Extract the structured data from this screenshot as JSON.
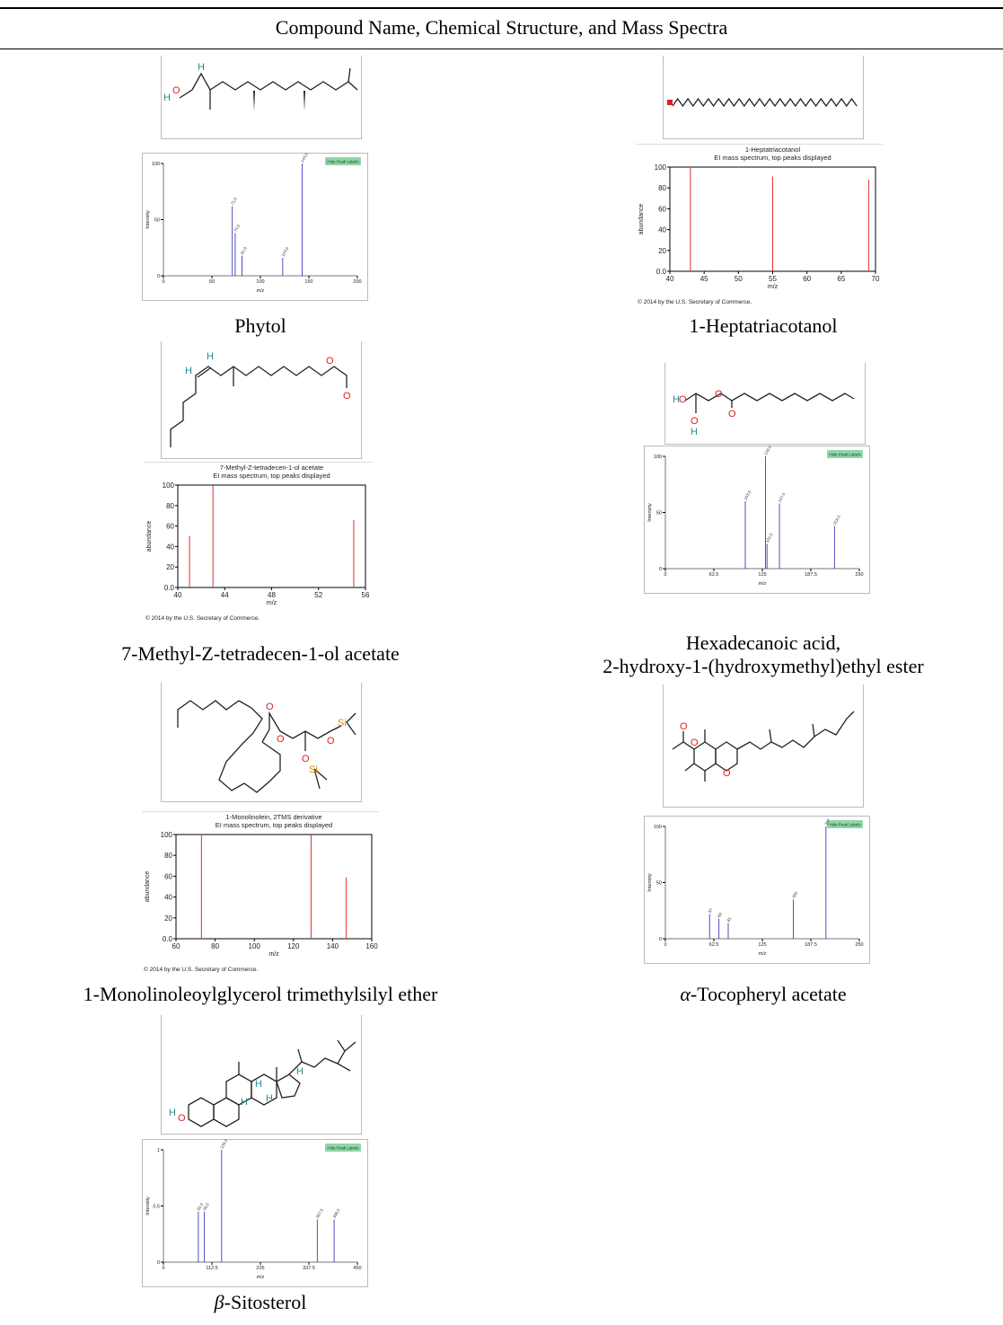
{
  "table": {
    "title": "Compound Name, Chemical Structure, and Mass Spectra"
  },
  "compounds": [
    {
      "name": "Phytol",
      "structure": {
        "atom_labels": [
          "H",
          "O",
          "H"
        ]
      },
      "spectrum": {
        "style": "pubchem",
        "button": "Hide Peak Labels",
        "xlabel": "m/z",
        "ylabel": "Intensity",
        "xticks": [
          "0",
          "50",
          "100",
          "150",
          "200"
        ],
        "yticks": [
          "0",
          "50",
          "100"
        ],
        "xlim": [
          0,
          200
        ],
        "ylim": [
          0,
          100
        ],
        "peaks": [
          {
            "x": 71,
            "y": 62,
            "label": "71.0"
          },
          {
            "x": 74,
            "y": 38,
            "label": "74.0"
          },
          {
            "x": 81,
            "y": 18,
            "label": "81.0"
          },
          {
            "x": 123,
            "y": 16,
            "label": "123.0"
          },
          {
            "x": 143,
            "y": 100,
            "label": "143.0"
          }
        ]
      }
    },
    {
      "name": "1-Heptatriacotanol",
      "structure": {
        "atom_labels": []
      },
      "spectrum": {
        "style": "nist",
        "title_lines": [
          "1-Heptatriacotanol",
          "EI mass spectrum, top peaks displayed"
        ],
        "xlabel": "m/z",
        "ylabel": "abundance",
        "xticks": [
          "40",
          "45",
          "50",
          "55",
          "60",
          "65",
          "70"
        ],
        "yticks": [
          "0.0",
          "20",
          "40",
          "60",
          "80",
          "100"
        ],
        "xlim": [
          40,
          70
        ],
        "ylim": [
          0,
          100
        ],
        "peaks": [
          {
            "x": 43,
            "y": 100
          },
          {
            "x": 55,
            "y": 91
          },
          {
            "x": 69,
            "y": 88
          }
        ],
        "copyright": "© 2014 by the U.S. Secretary of Commerce."
      }
    },
    {
      "name": "7-Methyl-Z-tetradecen-1-ol acetate",
      "structure": {
        "atom_labels": [
          "H",
          "H",
          "O",
          "O"
        ]
      },
      "spectrum": {
        "style": "nist",
        "title_lines": [
          "7-Methyl-Z-tetradecen-1-ol acetate",
          "EI mass spectrum, top peaks displayed"
        ],
        "xlabel": "m/z",
        "ylabel": "abundance",
        "xticks": [
          "40",
          "44",
          "48",
          "52",
          "56"
        ],
        "yticks": [
          "0.0",
          "20",
          "40",
          "60",
          "80",
          "100"
        ],
        "xlim": [
          40,
          56
        ],
        "ylim": [
          0,
          100
        ],
        "peaks": [
          {
            "x": 41,
            "y": 50
          },
          {
            "x": 43,
            "y": 100
          },
          {
            "x": 55,
            "y": 66
          }
        ],
        "copyright": "© 2014 by the U.S. Secretary of Commerce."
      }
    },
    {
      "name_lines": [
        "Hexadecanoic acid,",
        "2-hydroxy-1-(hydroxymethyl)ethyl ester"
      ],
      "structure": {
        "atom_labels": [
          "H",
          "O",
          "O",
          "O",
          "O",
          "H"
        ]
      },
      "spectrum": {
        "style": "pubchem",
        "button": "Hide Peak Labels",
        "xlabel": "m/z",
        "ylabel": "Intensity",
        "xticks": [
          "0",
          "62.5",
          "125",
          "187.5",
          "250"
        ],
        "yticks": [
          "0",
          "50",
          "100"
        ],
        "xlim": [
          0,
          250
        ],
        "ylim": [
          0,
          100
        ],
        "peaks": [
          {
            "x": 103,
            "y": 60,
            "label": "103.0"
          },
          {
            "x": 129,
            "y": 100,
            "label": "129.0"
          },
          {
            "x": 131,
            "y": 22,
            "label": "131.0"
          },
          {
            "x": 147,
            "y": 58,
            "label": "147.0"
          },
          {
            "x": 218,
            "y": 38,
            "label": "218.0"
          }
        ]
      }
    },
    {
      "name": "1-Monolinoleoylglycerol trimethylsilyl ether",
      "structure": {
        "atom_labels": [
          "O",
          "O",
          "O",
          "Si",
          "O",
          "Si"
        ]
      },
      "spectrum": {
        "style": "nist",
        "title_lines": [
          "1-Monolinolein, 2TMS derivative",
          "EI mass spectrum, top peaks displayed"
        ],
        "xlabel": "m/z",
        "ylabel": "abundance",
        "xticks": [
          "60",
          "80",
          "100",
          "120",
          "140",
          "160"
        ],
        "yticks": [
          "0.0",
          "20",
          "40",
          "60",
          "80",
          "100"
        ],
        "xlim": [
          60,
          160
        ],
        "ylim": [
          0,
          100
        ],
        "peaks": [
          {
            "x": 73,
            "y": 100
          },
          {
            "x": 129,
            "y": 100
          },
          {
            "x": 147,
            "y": 59
          }
        ],
        "copyright": "© 2014 by the U.S. Secretary of Commerce."
      }
    },
    {
      "name_prefix": "α",
      "name": "-Tocopheryl acetate",
      "structure": {
        "atom_labels": [
          "O",
          "O",
          "O"
        ]
      },
      "spectrum": {
        "style": "pubchem",
        "button": "Hide Peak Labels",
        "xlabel": "m/z",
        "ylabel": "Intensity",
        "xticks": [
          "0",
          "62.5",
          "125",
          "187.5",
          "250"
        ],
        "yticks": [
          "0",
          "50",
          "100"
        ],
        "xlim": [
          0,
          250
        ],
        "ylim": [
          0,
          100
        ],
        "peaks": [
          {
            "x": 57,
            "y": 22,
            "label": "57"
          },
          {
            "x": 69,
            "y": 18,
            "label": "69"
          },
          {
            "x": 81,
            "y": 14,
            "label": "81"
          },
          {
            "x": 165,
            "y": 35,
            "label": "165"
          },
          {
            "x": 207,
            "y": 100,
            "label": "207"
          }
        ]
      }
    },
    {
      "name_prefix": "β",
      "name": "-Sitosterol",
      "structure": {
        "atom_labels": [
          "H",
          "O",
          "H",
          "H",
          "H",
          "H"
        ]
      },
      "spectrum": {
        "style": "pubchem",
        "button": "Hide Peak Labels",
        "xlabel": "m/z",
        "ylabel": "Intensity",
        "xticks": [
          "0",
          "112.5",
          "225",
          "337.5",
          "450"
        ],
        "yticks": [
          "0",
          "0.5",
          "1"
        ],
        "xlim": [
          0,
          450
        ],
        "ylim": [
          0,
          1
        ],
        "peaks": [
          {
            "x": 81,
            "y": 0.45,
            "label": "81.0"
          },
          {
            "x": 95,
            "y": 0.45,
            "label": "95.0"
          },
          {
            "x": 135,
            "y": 1,
            "label": "135.0"
          },
          {
            "x": 357,
            "y": 0.38,
            "label": "357.0"
          },
          {
            "x": 396,
            "y": 0.38,
            "label": "396.0"
          }
        ]
      }
    }
  ]
}
